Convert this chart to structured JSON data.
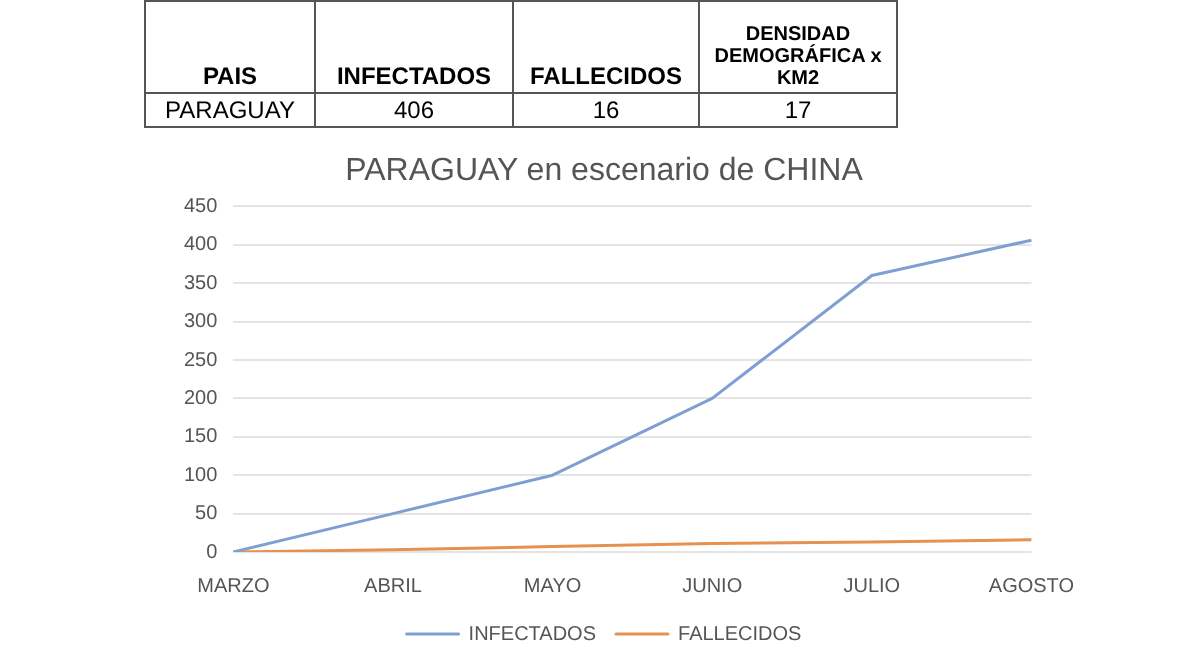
{
  "chart_data": [
    {
      "type": "other",
      "categories": [
        "PAIS",
        "INFECTADOS",
        "FALLECIDOS",
        "DENSIDAD DEMOGRÁFICA x KM2"
      ],
      "annotations": [
        "PARAGUAY",
        "406",
        "16",
        "17"
      ]
    },
    {
      "type": "line",
      "title": "PARAGUAY en escenario de CHINA",
      "categories": [
        "MARZO",
        "ABRIL",
        "MAYO",
        "JUNIO",
        "JULIO",
        "AGOSTO"
      ],
      "series": [
        {
          "name": "INFECTADOS",
          "color": "#7f9fd3",
          "values": [
            0,
            50,
            100,
            200,
            360,
            406
          ]
        },
        {
          "name": "FALLECIDOS",
          "color": "#e6914f",
          "values": [
            0,
            3,
            7,
            11,
            13,
            16
          ]
        }
      ],
      "ylim": [
        0,
        450
      ],
      "yticks": [
        0,
        50,
        100,
        150,
        200,
        250,
        300,
        350,
        400,
        450
      ],
      "grid": "y",
      "legend": "bottom",
      "marker": "none"
    }
  ]
}
